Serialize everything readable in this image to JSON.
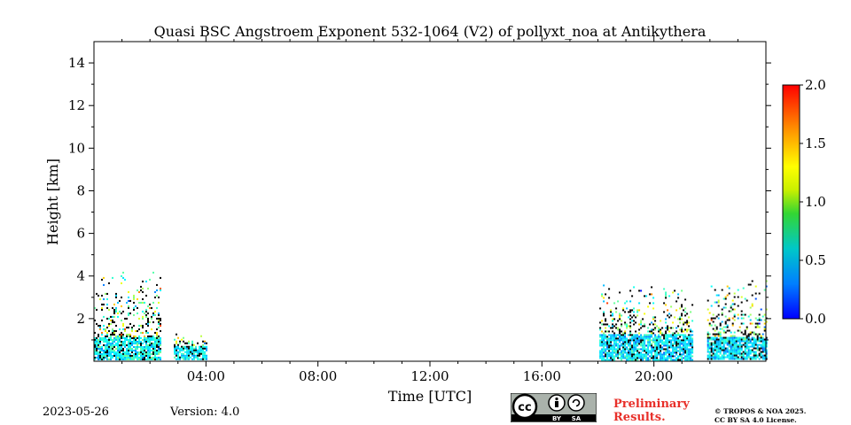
{
  "chart_data": {
    "type": "heatmap",
    "title": "Quasi BSC Angstroem Exponent 532-1064 (V2) of pollyxt_noa at Antikythera",
    "xlabel": "Time [UTC]",
    "ylabel": "Height [km]",
    "xlim": [
      0,
      24
    ],
    "ylim": [
      0,
      15
    ],
    "x_ticks": [
      {
        "value": 4,
        "label": "04:00"
      },
      {
        "value": 8,
        "label": "08:00"
      },
      {
        "value": 12,
        "label": "12:00"
      },
      {
        "value": 16,
        "label": "16:00"
      },
      {
        "value": 20,
        "label": "20:00"
      }
    ],
    "y_ticks": [
      {
        "value": 2,
        "label": "2"
      },
      {
        "value": 4,
        "label": "4"
      },
      {
        "value": 6,
        "label": "6"
      },
      {
        "value": 8,
        "label": "8"
      },
      {
        "value": 10,
        "label": "10"
      },
      {
        "value": 12,
        "label": "12"
      },
      {
        "value": 14,
        "label": "14"
      }
    ],
    "colorbar": {
      "min": 0.0,
      "max": 2.0,
      "colormap": "jet",
      "ticks": [
        {
          "value": 0.0,
          "label": "0.0"
        },
        {
          "value": 0.5,
          "label": "0.5"
        },
        {
          "value": 1.0,
          "label": "1.0"
        },
        {
          "value": 1.5,
          "label": "1.5"
        },
        {
          "value": 2.0,
          "label": "2.0"
        }
      ]
    },
    "data_segments": [
      {
        "t_start": 0.0,
        "t_end": 2.35,
        "dense_top_km": 1.2,
        "sparse_top_km": 4.2,
        "typical_value": 0.75
      },
      {
        "t_start": 2.85,
        "t_end": 4.0,
        "dense_top_km": 0.8,
        "sparse_top_km": 1.3,
        "typical_value": 0.75
      },
      {
        "t_start": 18.05,
        "t_end": 21.4,
        "dense_top_km": 1.3,
        "sparse_top_km": 3.6,
        "typical_value": 0.7
      },
      {
        "t_start": 21.9,
        "t_end": 24.0,
        "dense_top_km": 1.2,
        "sparse_top_km": 3.8,
        "typical_value": 0.7
      }
    ]
  },
  "footer": {
    "date": "2023-05-26",
    "version": "Version: 4.0",
    "preliminary_line1": "Preliminary",
    "preliminary_line2": "Results.",
    "copyright_line1": "© TROPOS & NOA 2025.",
    "copyright_line2": "CC BY SA 4.0 License.",
    "license_badge_label": "cc",
    "license_by": "BY",
    "license_sa": "SA"
  }
}
